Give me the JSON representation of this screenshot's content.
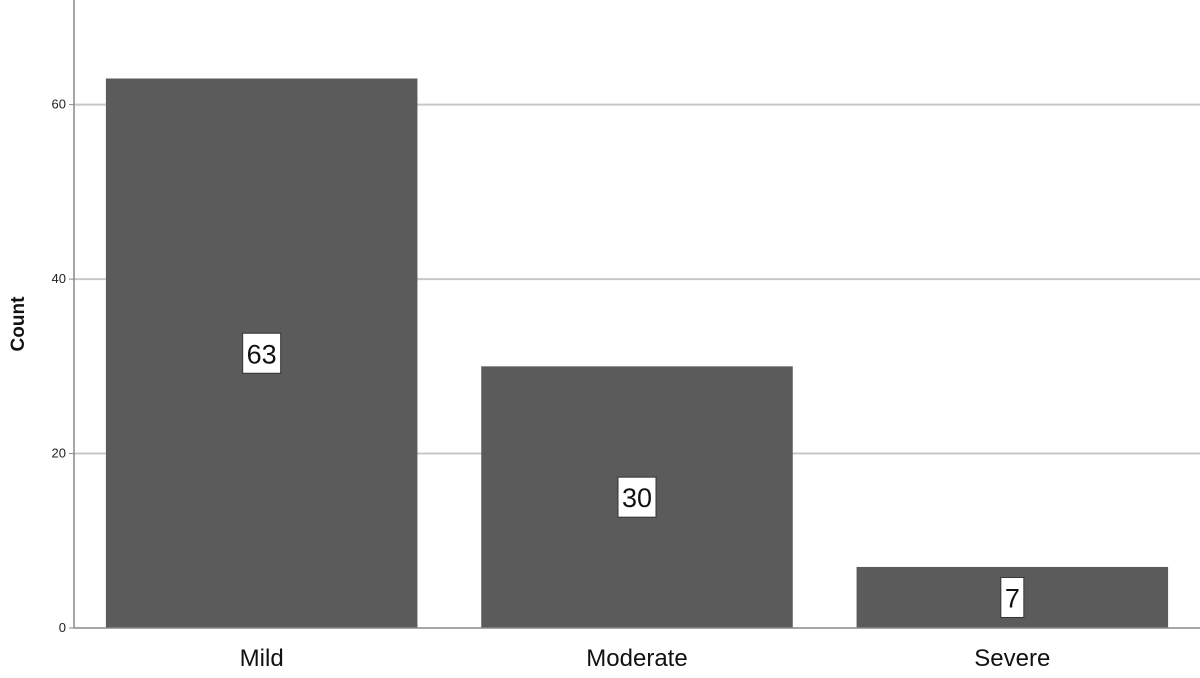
{
  "chart_data": {
    "type": "bar",
    "title": "",
    "xlabel": "",
    "ylabel": "Count",
    "categories": [
      "Mild",
      "Moderate",
      "Severe"
    ],
    "values": [
      63,
      30,
      7
    ],
    "data_labels": [
      "63",
      "30",
      "7"
    ],
    "ylim": [
      0,
      72
    ],
    "yticks": [
      0,
      20,
      40,
      60
    ],
    "grid": true,
    "legend": "none",
    "colors": {
      "bar": "#5b5b5b",
      "grid": "#c8c8c8",
      "axis": "#888888",
      "label_box": "#ffffff"
    }
  }
}
